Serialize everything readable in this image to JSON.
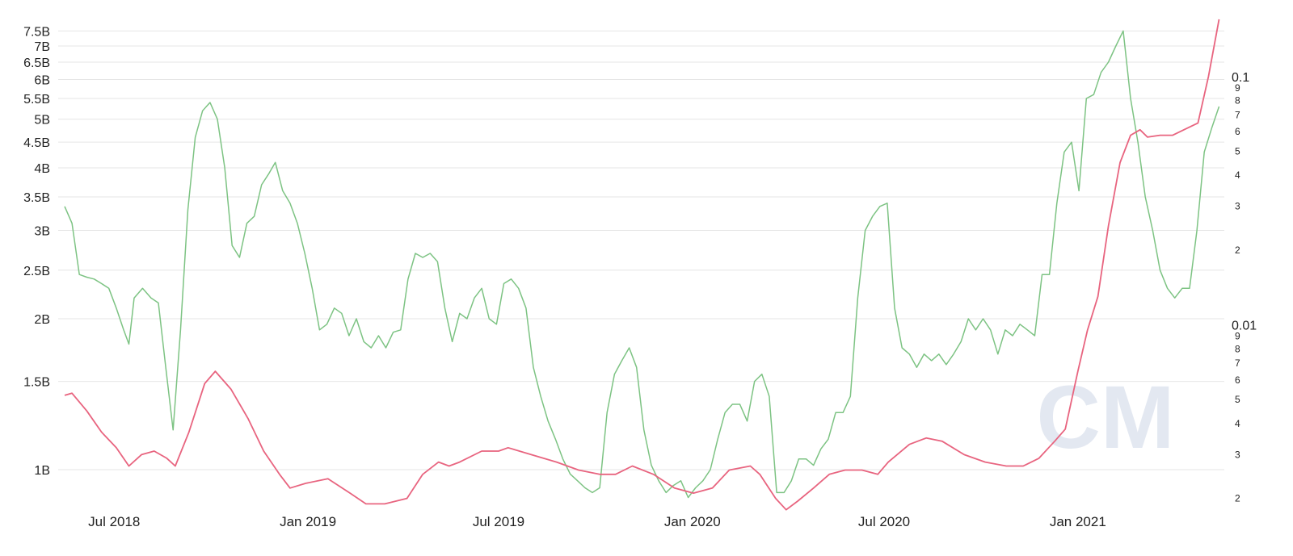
{
  "chart_data": {
    "type": "line",
    "title": "",
    "x_range": [
      "2018-05-15",
      "2021-05-20"
    ],
    "x_ticks": [
      "Jul 2018",
      "Jan 2019",
      "Jul 2019",
      "Jan 2020",
      "Jul 2020",
      "Jan 2021"
    ],
    "x_tick_dates": [
      "2018-07-01",
      "2019-01-01",
      "2019-07-01",
      "2020-01-01",
      "2020-07-01",
      "2021-01-01"
    ],
    "y_left": {
      "scale": "log",
      "range": [
        0.875,
        7.65
      ],
      "ticks": [
        "1B",
        "1.5B",
        "2B",
        "2.5B",
        "3B",
        "3.5B",
        "4B",
        "4.5B",
        "5B",
        "5.5B",
        "6B",
        "6.5B",
        "7B",
        "7.5B"
      ],
      "tick_values": [
        1,
        1.5,
        2,
        2.5,
        3,
        3.5,
        4,
        4.5,
        5,
        5.5,
        6,
        6.5,
        7,
        7.5
      ]
    },
    "y_right": {
      "scale": "log",
      "range": [
        0.00185,
        0.175
      ],
      "major_ticks": [
        "0.1",
        "0.01"
      ],
      "major_values": [
        0.1,
        0.01
      ],
      "minor_ticks": [
        "9",
        "8",
        "7",
        "6",
        "5",
        "4",
        "3",
        "2",
        "9",
        "8",
        "7",
        "6",
        "5",
        "4",
        "3",
        "2"
      ],
      "minor_values": [
        0.09,
        0.08,
        0.07,
        0.06,
        0.05,
        0.04,
        0.03,
        0.02,
        0.009,
        0.008,
        0.007,
        0.006,
        0.005,
        0.004,
        0.003,
        0.002
      ]
    },
    "grid": "horizontal",
    "legend": "none",
    "series": [
      {
        "axis": "left",
        "color": "#7dc383",
        "points": [
          [
            "2018-05-15",
            3.35
          ],
          [
            "2018-05-22",
            3.1
          ],
          [
            "2018-05-29",
            2.45
          ],
          [
            "2018-06-05",
            2.42
          ],
          [
            "2018-06-12",
            2.4
          ],
          [
            "2018-06-19",
            2.35
          ],
          [
            "2018-06-26",
            2.3
          ],
          [
            "2018-07-03",
            2.1
          ],
          [
            "2018-07-10",
            1.9
          ],
          [
            "2018-07-15",
            1.78
          ],
          [
            "2018-07-20",
            2.2
          ],
          [
            "2018-07-28",
            2.3
          ],
          [
            "2018-08-05",
            2.2
          ],
          [
            "2018-08-12",
            2.15
          ],
          [
            "2018-08-19",
            1.6
          ],
          [
            "2018-08-26",
            1.2
          ],
          [
            "2018-09-02",
            1.9
          ],
          [
            "2018-09-09",
            3.3
          ],
          [
            "2018-09-16",
            4.6
          ],
          [
            "2018-09-23",
            5.2
          ],
          [
            "2018-09-30",
            5.4
          ],
          [
            "2018-10-07",
            5.0
          ],
          [
            "2018-10-14",
            4.0
          ],
          [
            "2018-10-21",
            2.8
          ],
          [
            "2018-10-28",
            2.65
          ],
          [
            "2018-11-04",
            3.1
          ],
          [
            "2018-11-11",
            3.2
          ],
          [
            "2018-11-18",
            3.7
          ],
          [
            "2018-11-25",
            3.9
          ],
          [
            "2018-12-01",
            4.1
          ],
          [
            "2018-12-08",
            3.6
          ],
          [
            "2018-12-15",
            3.4
          ],
          [
            "2018-12-22",
            3.1
          ],
          [
            "2018-12-29",
            2.7
          ],
          [
            "2019-01-05",
            2.3
          ],
          [
            "2019-01-12",
            1.9
          ],
          [
            "2019-01-19",
            1.95
          ],
          [
            "2019-01-26",
            2.1
          ],
          [
            "2019-02-02",
            2.05
          ],
          [
            "2019-02-09",
            1.85
          ],
          [
            "2019-02-16",
            2.0
          ],
          [
            "2019-02-23",
            1.8
          ],
          [
            "2019-03-02",
            1.75
          ],
          [
            "2019-03-09",
            1.85
          ],
          [
            "2019-03-16",
            1.75
          ],
          [
            "2019-03-23",
            1.88
          ],
          [
            "2019-03-30",
            1.9
          ],
          [
            "2019-04-06",
            2.4
          ],
          [
            "2019-04-13",
            2.7
          ],
          [
            "2019-04-20",
            2.65
          ],
          [
            "2019-04-27",
            2.7
          ],
          [
            "2019-05-04",
            2.6
          ],
          [
            "2019-05-11",
            2.1
          ],
          [
            "2019-05-18",
            1.8
          ],
          [
            "2019-05-25",
            2.05
          ],
          [
            "2019-06-01",
            2.0
          ],
          [
            "2019-06-08",
            2.2
          ],
          [
            "2019-06-15",
            2.3
          ],
          [
            "2019-06-22",
            2.0
          ],
          [
            "2019-06-29",
            1.95
          ],
          [
            "2019-07-06",
            2.35
          ],
          [
            "2019-07-13",
            2.4
          ],
          [
            "2019-07-20",
            2.3
          ],
          [
            "2019-07-27",
            2.1
          ],
          [
            "2019-08-03",
            1.6
          ],
          [
            "2019-08-10",
            1.4
          ],
          [
            "2019-08-17",
            1.25
          ],
          [
            "2019-08-24",
            1.15
          ],
          [
            "2019-08-31",
            1.05
          ],
          [
            "2019-09-07",
            0.98
          ],
          [
            "2019-09-14",
            0.95
          ],
          [
            "2019-09-21",
            0.92
          ],
          [
            "2019-09-28",
            0.9
          ],
          [
            "2019-10-05",
            0.92
          ],
          [
            "2019-10-12",
            1.3
          ],
          [
            "2019-10-19",
            1.55
          ],
          [
            "2019-10-26",
            1.65
          ],
          [
            "2019-11-02",
            1.75
          ],
          [
            "2019-11-09",
            1.6
          ],
          [
            "2019-11-16",
            1.2
          ],
          [
            "2019-11-23",
            1.02
          ],
          [
            "2019-11-30",
            0.95
          ],
          [
            "2019-12-07",
            0.9
          ],
          [
            "2019-12-14",
            0.93
          ],
          [
            "2019-12-21",
            0.95
          ],
          [
            "2019-12-28",
            0.88
          ],
          [
            "2020-01-04",
            0.92
          ],
          [
            "2020-01-11",
            0.95
          ],
          [
            "2020-01-18",
            1.0
          ],
          [
            "2020-01-25",
            1.15
          ],
          [
            "2020-02-01",
            1.3
          ],
          [
            "2020-02-08",
            1.35
          ],
          [
            "2020-02-15",
            1.35
          ],
          [
            "2020-02-22",
            1.25
          ],
          [
            "2020-02-29",
            1.5
          ],
          [
            "2020-03-07",
            1.55
          ],
          [
            "2020-03-14",
            1.4
          ],
          [
            "2020-03-21",
            0.9
          ],
          [
            "2020-03-28",
            0.9
          ],
          [
            "2020-04-04",
            0.95
          ],
          [
            "2020-04-11",
            1.05
          ],
          [
            "2020-04-18",
            1.05
          ],
          [
            "2020-04-25",
            1.02
          ],
          [
            "2020-05-02",
            1.1
          ],
          [
            "2020-05-09",
            1.15
          ],
          [
            "2020-05-16",
            1.3
          ],
          [
            "2020-05-23",
            1.3
          ],
          [
            "2020-05-30",
            1.4
          ],
          [
            "2020-06-06",
            2.2
          ],
          [
            "2020-06-13",
            3.0
          ],
          [
            "2020-06-20",
            3.2
          ],
          [
            "2020-06-27",
            3.35
          ],
          [
            "2020-07-04",
            3.4
          ],
          [
            "2020-07-11",
            2.1
          ],
          [
            "2020-07-18",
            1.75
          ],
          [
            "2020-07-25",
            1.7
          ],
          [
            "2020-08-01",
            1.6
          ],
          [
            "2020-08-08",
            1.7
          ],
          [
            "2020-08-15",
            1.65
          ],
          [
            "2020-08-22",
            1.7
          ],
          [
            "2020-08-29",
            1.62
          ],
          [
            "2020-09-05",
            1.7
          ],
          [
            "2020-09-12",
            1.8
          ],
          [
            "2020-09-19",
            2.0
          ],
          [
            "2020-09-26",
            1.9
          ],
          [
            "2020-10-03",
            2.0
          ],
          [
            "2020-10-10",
            1.9
          ],
          [
            "2020-10-17",
            1.7
          ],
          [
            "2020-10-24",
            1.9
          ],
          [
            "2020-10-31",
            1.85
          ],
          [
            "2020-11-07",
            1.95
          ],
          [
            "2020-11-14",
            1.9
          ],
          [
            "2020-11-21",
            1.85
          ],
          [
            "2020-11-28",
            2.45
          ],
          [
            "2020-12-05",
            2.45
          ],
          [
            "2020-12-12",
            3.4
          ],
          [
            "2020-12-19",
            4.3
          ],
          [
            "2020-12-26",
            4.5
          ],
          [
            "2021-01-02",
            3.6
          ],
          [
            "2021-01-09",
            5.5
          ],
          [
            "2021-01-16",
            5.6
          ],
          [
            "2021-01-23",
            6.2
          ],
          [
            "2021-01-30",
            6.5
          ],
          [
            "2021-02-06",
            7.0
          ],
          [
            "2021-02-13",
            7.5
          ],
          [
            "2021-02-20",
            5.5
          ],
          [
            "2021-02-27",
            4.5
          ],
          [
            "2021-03-06",
            3.5
          ],
          [
            "2021-03-13",
            3.0
          ],
          [
            "2021-03-20",
            2.5
          ],
          [
            "2021-03-27",
            2.3
          ],
          [
            "2021-04-03",
            2.2
          ],
          [
            "2021-04-10",
            2.3
          ],
          [
            "2021-04-17",
            2.3
          ],
          [
            "2021-04-24",
            3.0
          ],
          [
            "2021-05-01",
            4.3
          ],
          [
            "2021-05-08",
            4.8
          ],
          [
            "2021-05-15",
            5.3
          ]
        ]
      },
      {
        "axis": "right",
        "color": "#e8647f",
        "points": [
          [
            "2018-05-15",
            0.0052
          ],
          [
            "2018-05-22",
            0.0053
          ],
          [
            "2018-06-05",
            0.0045
          ],
          [
            "2018-06-19",
            0.0037
          ],
          [
            "2018-07-03",
            0.0032
          ],
          [
            "2018-07-15",
            0.0027
          ],
          [
            "2018-07-27",
            0.003
          ],
          [
            "2018-08-08",
            0.0031
          ],
          [
            "2018-08-20",
            0.0029
          ],
          [
            "2018-08-28",
            0.0027
          ],
          [
            "2018-09-10",
            0.0037
          ],
          [
            "2018-09-25",
            0.0058
          ],
          [
            "2018-10-05",
            0.0065
          ],
          [
            "2018-10-20",
            0.0055
          ],
          [
            "2018-11-05",
            0.0042
          ],
          [
            "2018-11-20",
            0.0031
          ],
          [
            "2018-12-05",
            0.0025
          ],
          [
            "2018-12-15",
            0.0022
          ],
          [
            "2018-12-30",
            0.0023
          ],
          [
            "2019-01-20",
            0.0024
          ],
          [
            "2019-02-10",
            0.0021
          ],
          [
            "2019-02-25",
            0.0019
          ],
          [
            "2019-03-15",
            0.0019
          ],
          [
            "2019-04-05",
            0.002
          ],
          [
            "2019-04-20",
            0.0025
          ],
          [
            "2019-05-05",
            0.0028
          ],
          [
            "2019-05-15",
            0.0027
          ],
          [
            "2019-05-25",
            0.0028
          ],
          [
            "2019-06-15",
            0.0031
          ],
          [
            "2019-07-01",
            0.0031
          ],
          [
            "2019-07-10",
            0.0032
          ],
          [
            "2019-08-01",
            0.003
          ],
          [
            "2019-08-25",
            0.0028
          ],
          [
            "2019-09-15",
            0.0026
          ],
          [
            "2019-10-05",
            0.0025
          ],
          [
            "2019-10-20",
            0.0025
          ],
          [
            "2019-11-05",
            0.0027
          ],
          [
            "2019-11-25",
            0.0025
          ],
          [
            "2019-12-15",
            0.0022
          ],
          [
            "2020-01-02",
            0.0021
          ],
          [
            "2020-01-20",
            0.0022
          ],
          [
            "2020-02-05",
            0.0026
          ],
          [
            "2020-02-25",
            0.0027
          ],
          [
            "2020-03-05",
            0.0025
          ],
          [
            "2020-03-20",
            0.002
          ],
          [
            "2020-03-30",
            0.0018
          ],
          [
            "2020-04-10",
            0.00195
          ],
          [
            "2020-04-25",
            0.0022
          ],
          [
            "2020-05-10",
            0.0025
          ],
          [
            "2020-05-25",
            0.0026
          ],
          [
            "2020-06-10",
            0.0026
          ],
          [
            "2020-06-25",
            0.0025
          ],
          [
            "2020-07-05",
            0.0028
          ],
          [
            "2020-07-25",
            0.0033
          ],
          [
            "2020-08-10",
            0.0035
          ],
          [
            "2020-08-25",
            0.0034
          ],
          [
            "2020-09-15",
            0.003
          ],
          [
            "2020-10-05",
            0.0028
          ],
          [
            "2020-10-25",
            0.0027
          ],
          [
            "2020-11-10",
            0.0027
          ],
          [
            "2020-11-25",
            0.0029
          ],
          [
            "2020-12-10",
            0.0034
          ],
          [
            "2020-12-20",
            0.0038
          ],
          [
            "2021-01-01",
            0.0065
          ],
          [
            "2021-01-10",
            0.0095
          ],
          [
            "2021-01-20",
            0.013
          ],
          [
            "2021-01-30",
            0.025
          ],
          [
            "2021-02-10",
            0.045
          ],
          [
            "2021-02-20",
            0.058
          ],
          [
            "2021-03-01",
            0.061
          ],
          [
            "2021-03-08",
            0.057
          ],
          [
            "2021-03-20",
            0.058
          ],
          [
            "2021-04-01",
            0.058
          ],
          [
            "2021-04-15",
            0.062
          ],
          [
            "2021-04-25",
            0.065
          ],
          [
            "2021-05-05",
            0.1
          ],
          [
            "2021-05-15",
            0.17
          ]
        ]
      }
    ]
  },
  "watermark": "CM"
}
